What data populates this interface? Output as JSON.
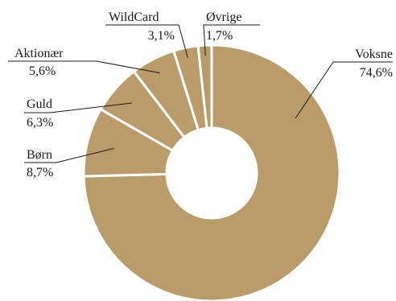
{
  "chart_data": {
    "type": "pie",
    "style": "donut",
    "color": "#BA9B6A",
    "separator_color": "#ffffff",
    "slices": [
      {
        "label": "Voksne",
        "value": 74.6,
        "value_label": "74,6%"
      },
      {
        "label": "Børn",
        "value": 8.7,
        "value_label": "8,7%"
      },
      {
        "label": "Guld",
        "value": 6.3,
        "value_label": "6,3%"
      },
      {
        "label": "Aktionær",
        "value": 5.6,
        "value_label": "5,6%"
      },
      {
        "label": "WildCard",
        "value": 3.1,
        "value_label": "3,1%"
      },
      {
        "label": "Øvrige",
        "value": 1.7,
        "value_label": "1,7%"
      }
    ]
  }
}
